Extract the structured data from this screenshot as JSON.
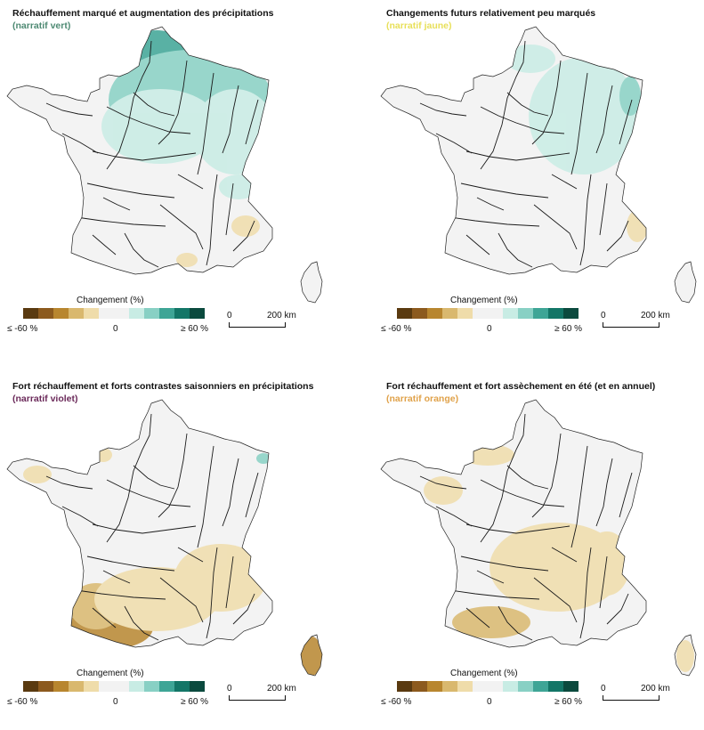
{
  "panels": [
    {
      "title": "Réchauffement marqué et augmentation des précipitations",
      "subtitle": "(narratif vert)",
      "subtitle_color": "#4e8a73",
      "pattern": "wet_north"
    },
    {
      "title": "Changements futurs relativement peu marqués",
      "subtitle": "(narratif jaune)",
      "subtitle_color": "#e8e05a",
      "pattern": "mild_east"
    },
    {
      "title": "Fort réchauffement et forts contrastes saisonniers en précipitations",
      "subtitle": "(narratif violet)",
      "subtitle_color": "#6b2a5a",
      "pattern": "dry_southwest"
    },
    {
      "title": "Fort réchauffement et fort assèchement en été (et en annuel)",
      "subtitle": "(narratif orange)",
      "subtitle_color": "#e0a24a",
      "pattern": "dry_central"
    }
  ],
  "legend": {
    "title": "Changement (%)",
    "min_label": "≤ -60 %",
    "mid_label": "0",
    "max_label": "≥ 60 %",
    "colors": [
      "#5a3a10",
      "#8c5a1e",
      "#b8862f",
      "#d9b86e",
      "#efdcaa",
      "#f2f2f2",
      "#f2f2f2",
      "#c8ece4",
      "#88d0c4",
      "#3ea596",
      "#137667",
      "#0b4a3e"
    ]
  },
  "scale_bar": {
    "start_label": "0",
    "end_label": "200 km"
  }
}
